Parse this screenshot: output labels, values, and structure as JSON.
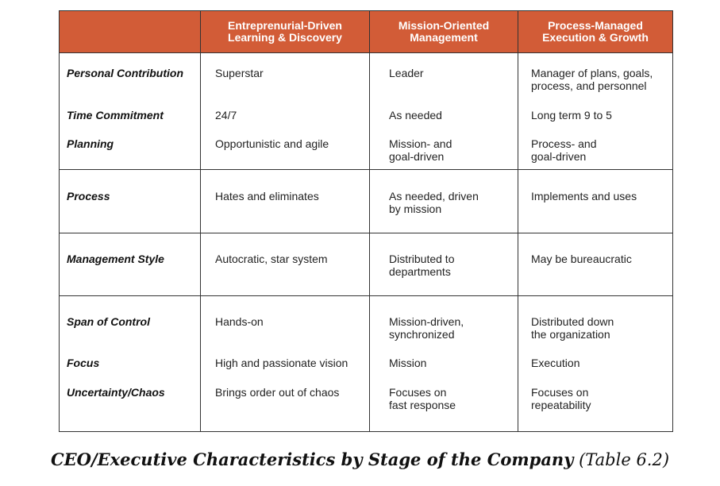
{
  "columns": [
    "",
    "Entreprenurial-Driven\nLearning & Discovery",
    "Mission-Oriented\nManagement",
    "Process-Managed\nExecution & Growth"
  ],
  "rows": [
    {
      "label": "Personal Contribution",
      "cells": [
        "Superstar",
        "Leader",
        "Manager of plans, goals,\nprocess, and personnel"
      ]
    },
    {
      "label": "Time Commitment",
      "cells": [
        "24/7",
        "As needed",
        "Long term 9 to 5"
      ]
    },
    {
      "label": "Planning",
      "cells": [
        "Opportunistic and agile",
        "Mission- and\ngoal-driven",
        "Process- and\ngoal-driven"
      ]
    },
    {
      "label": "Process",
      "cells": [
        "Hates and eliminates",
        "As needed, driven\nby mission",
        "Implements and uses"
      ]
    },
    {
      "label": "Management Style",
      "cells": [
        "Autocratic, star system",
        "Distributed to\ndepartments",
        "May be bureaucratic"
      ]
    },
    {
      "label": "Span of Control",
      "cells": [
        "Hands-on",
        "Mission-driven,\nsynchronized",
        "Distributed down\nthe organization"
      ]
    },
    {
      "label": "Focus",
      "cells": [
        "High and passionate vision",
        "Mission",
        "Execution"
      ]
    },
    {
      "label": "Uncertainty/Chaos",
      "cells": [
        "Brings order out of chaos",
        "Focuses on\nfast response",
        "Focuses on\nrepeatability"
      ]
    }
  ],
  "caption": {
    "title": "CEO/Executive Characteristics by Stage of the Company",
    "reference": "(Table 6.2)"
  },
  "colors": {
    "header_background": "#d25c37",
    "header_text": "#ffffff",
    "border": "#333333"
  }
}
